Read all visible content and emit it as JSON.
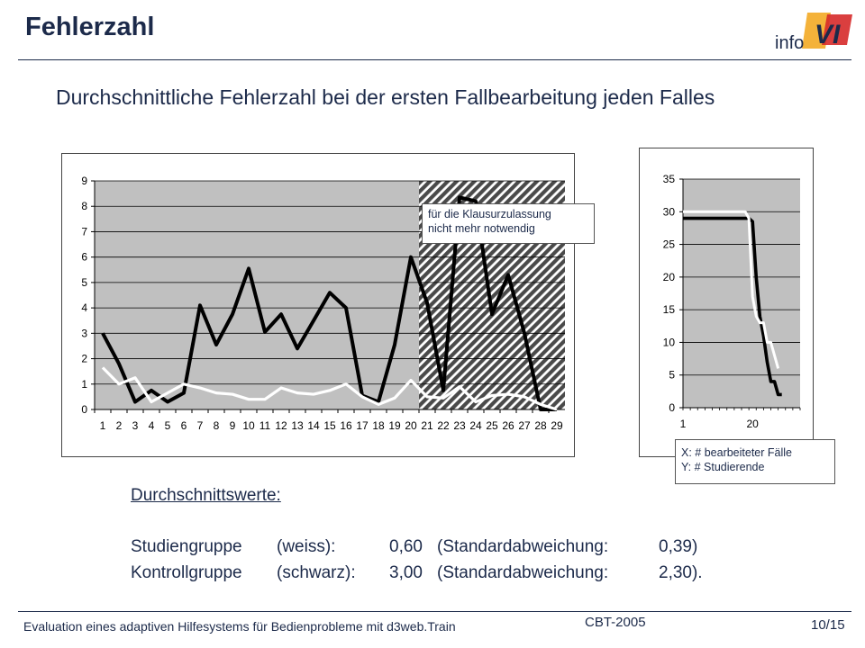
{
  "slide": {
    "title": "Fehlerzahl",
    "logo_text": "info",
    "logo_mark": "VI",
    "subtitle": "Durchschnittliche Fehlerzahl bei der ersten Fallbearbeitung jeden Falles"
  },
  "callouts": {
    "hatched_line1": "für die Klausurzulassung",
    "hatched_line2": "nicht mehr notwendig",
    "axes_line1": "X: # bearbeiteter Fälle",
    "axes_line2": "Y: # Studierende"
  },
  "stats": {
    "heading": "Durchschnittswerte:",
    "rows": [
      {
        "group": "Studiengruppe",
        "color_word": "(weiss):",
        "mean": "0,60",
        "sd_label": "(Standardabweichung:",
        "sd": "0,39)"
      },
      {
        "group": "Kontrollgruppe",
        "color_word": "(schwarz):",
        "mean": "3,00",
        "sd_label": "(Standardabweichung:",
        "sd": "2,30)."
      }
    ]
  },
  "footer": {
    "left": "Evaluation eines adaptiven Hilfesystems für Bedienprobleme mit d3web.Train",
    "center": "CBT-2005",
    "page": "10/15"
  },
  "chart_data": [
    {
      "type": "line",
      "x": [
        1,
        2,
        3,
        4,
        5,
        6,
        7,
        8,
        9,
        10,
        11,
        12,
        13,
        14,
        15,
        16,
        17,
        18,
        19,
        20,
        21,
        22,
        23,
        24,
        25,
        26,
        27,
        28,
        29
      ],
      "ylim": [
        0,
        9
      ],
      "yticks": [
        0,
        1,
        2,
        3,
        4,
        5,
        6,
        7,
        8,
        9
      ],
      "hatched_from_x": 21,
      "grid": true,
      "series": [
        {
          "color": "#000000",
          "values": [
            3.0,
            1.8,
            0.3,
            0.75,
            0.3,
            0.65,
            4.1,
            2.55,
            3.75,
            5.55,
            3.05,
            3.75,
            2.4,
            3.5,
            4.6,
            4.0,
            0.55,
            0.3,
            2.55,
            6.0,
            4.2,
            0.75,
            8.35,
            8.2,
            3.75,
            5.3,
            3.0,
            0.0,
            0.0
          ]
        },
        {
          "color": "#ffffff",
          "values": [
            1.65,
            1.0,
            1.25,
            0.3,
            0.65,
            1.0,
            0.85,
            0.65,
            0.6,
            0.4,
            0.4,
            0.85,
            0.65,
            0.6,
            0.75,
            1.0,
            0.5,
            0.2,
            0.45,
            1.15,
            0.5,
            0.45,
            0.9,
            0.3,
            0.55,
            0.6,
            0.5,
            0.2,
            0.0
          ]
        }
      ]
    },
    {
      "type": "line",
      "x_ticks": [
        1,
        20
      ],
      "xlim": [
        1,
        33
      ],
      "ylim": [
        0,
        35
      ],
      "yticks": [
        0,
        5,
        10,
        15,
        20,
        25,
        30,
        35
      ],
      "grid": true,
      "series": [
        {
          "color": "#000000",
          "points": [
            [
              1,
              29
            ],
            [
              19,
              29
            ],
            [
              20,
              28.5
            ],
            [
              21,
              20
            ],
            [
              22,
              14
            ],
            [
              23,
              11
            ],
            [
              24,
              7
            ],
            [
              25,
              4
            ],
            [
              26,
              4
            ],
            [
              27,
              2
            ],
            [
              28,
              2
            ]
          ]
        },
        {
          "color": "#ffffff",
          "points": [
            [
              1,
              30
            ],
            [
              18,
              30
            ],
            [
              19,
              29
            ],
            [
              20,
              17
            ],
            [
              21,
              14
            ],
            [
              22,
              13
            ],
            [
              23,
              13
            ],
            [
              24,
              10
            ],
            [
              25,
              10
            ],
            [
              26,
              8
            ],
            [
              27,
              6
            ]
          ]
        }
      ]
    }
  ]
}
